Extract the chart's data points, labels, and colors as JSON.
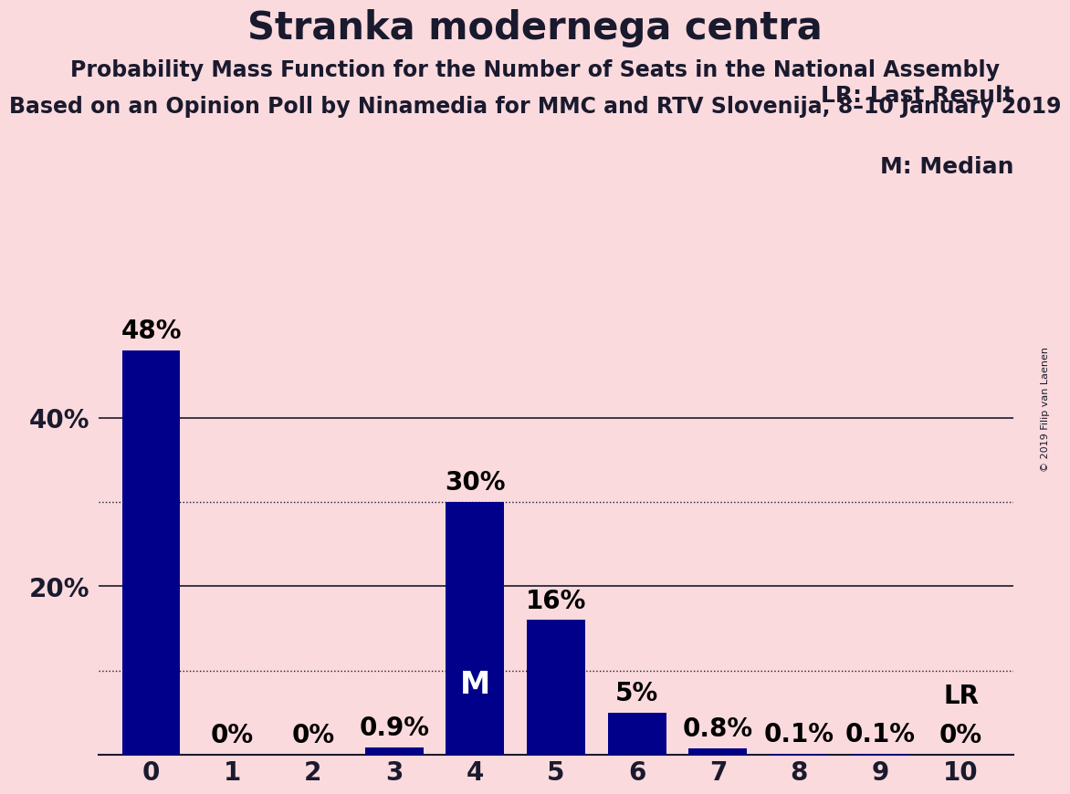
{
  "title": "Stranka modernega centra",
  "subtitle1": "Probability Mass Function for the Number of Seats in the National Assembly",
  "subtitle2": "Based on an Opinion Poll by Ninamedia for MMC and RTV Slovenija, 8–10 January 2019",
  "copyright": "© 2019 Filip van Laenen",
  "categories": [
    0,
    1,
    2,
    3,
    4,
    5,
    6,
    7,
    8,
    9,
    10
  ],
  "values": [
    48,
    0,
    0,
    0.9,
    30,
    16,
    5,
    0.8,
    0.1,
    0.1,
    0
  ],
  "labels": [
    "48%",
    "0%",
    "0%",
    "0.9%",
    "30%",
    "16%",
    "5%",
    "0.8%",
    "0.1%",
    "0.1%",
    "0%"
  ],
  "bar_color": "#00008B",
  "background_color": "#FADADD",
  "median_bar": 4,
  "lr_bar": 10,
  "median_label": "M",
  "lr_label": "LR",
  "lr_legend": "LR: Last Result",
  "m_legend": "M: Median",
  "solid_gridlines": [
    20,
    40
  ],
  "dotted_gridlines": [
    10,
    30
  ],
  "ylim": [
    0,
    56
  ],
  "ytick_labels": [
    "20%",
    "40%"
  ],
  "ytick_positions": [
    20,
    40
  ],
  "title_fontsize": 30,
  "subtitle_fontsize": 17,
  "tick_fontsize": 20,
  "legend_fontsize": 18,
  "bar_label_fontsize": 20,
  "m_fontsize": 24,
  "bar_width": 0.72
}
